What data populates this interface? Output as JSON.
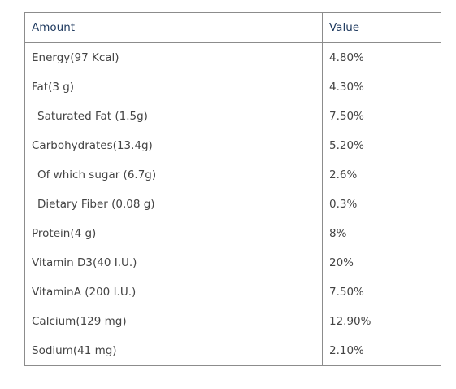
{
  "table": {
    "headers": {
      "amount": "Amount",
      "value": "Value"
    },
    "rows": [
      {
        "amount": "Energy(97 Kcal)",
        "value": "4.80%",
        "indent": false
      },
      {
        "amount": "Fat(3 g)",
        "value": "4.30%",
        "indent": false
      },
      {
        "amount": "Saturated Fat (1.5g)",
        "value": "7.50%",
        "indent": true
      },
      {
        "amount": "Carbohydrates(13.4g)",
        "value": "5.20%",
        "indent": false
      },
      {
        "amount": "Of which sugar (6.7g)",
        "value": "2.6%",
        "indent": true
      },
      {
        "amount": "Dietary Fiber (0.08 g)",
        "value": "0.3%",
        "indent": true
      },
      {
        "amount": "Protein(4 g)",
        "value": "8%",
        "indent": false
      },
      {
        "amount": "Vitamin D3(40 I.U.)",
        "value": "20%",
        "indent": false
      },
      {
        "amount": "VitaminA (200 I.U.)",
        "value": "7.50%",
        "indent": false
      },
      {
        "amount": "Calcium(129 mg)",
        "value": "12.90%",
        "indent": false
      },
      {
        "amount": "Sodium(41 mg)",
        "value": "2.10%",
        "indent": false
      }
    ]
  },
  "colors": {
    "header_text": "#1f3a5f",
    "body_text": "#444444",
    "border": "#8c8c8c"
  }
}
